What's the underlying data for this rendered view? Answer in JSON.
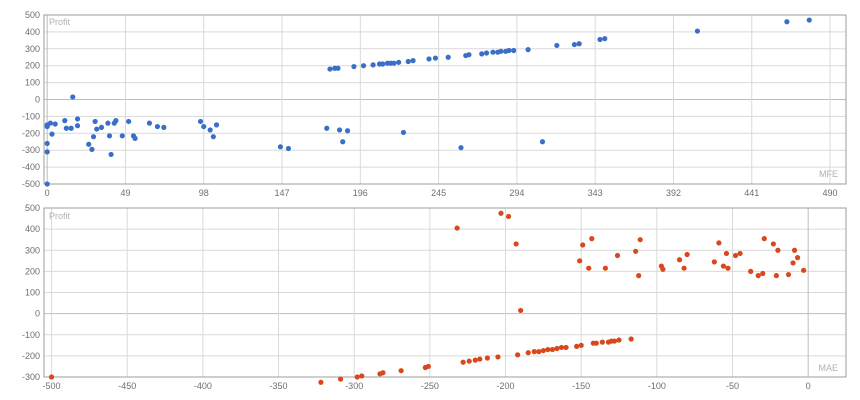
{
  "colors": {
    "top": "#3a6fc9",
    "bottom": "#d9471c",
    "grid": "#d9d9d9",
    "zero": "#bdbdbd",
    "axis": "#9e9e9e"
  },
  "chart_data": [
    {
      "type": "scatter",
      "corner_label": "Profit",
      "xlabel": "MFE",
      "xlim": [
        -2,
        500
      ],
      "ylim": [
        -500,
        500
      ],
      "x_ticks": [
        0,
        49,
        98,
        147,
        196,
        245,
        294,
        343,
        392,
        441,
        490
      ],
      "y_ticks": [
        500,
        400,
        300,
        200,
        100,
        0,
        -100,
        -200,
        -300,
        -400,
        -500
      ],
      "grid": true,
      "points": [
        [
          0,
          -500
        ],
        [
          0,
          -150
        ],
        [
          0,
          -160
        ],
        [
          0,
          -260
        ],
        [
          0,
          -310
        ],
        [
          2,
          -140
        ],
        [
          3,
          -205
        ],
        [
          5,
          -145
        ],
        [
          11,
          -125
        ],
        [
          12,
          -170
        ],
        [
          15,
          -170
        ],
        [
          16,
          15
        ],
        [
          19,
          -115
        ],
        [
          19,
          -155
        ],
        [
          26,
          -265
        ],
        [
          28,
          -295
        ],
        [
          29,
          -220
        ],
        [
          30,
          -130
        ],
        [
          31,
          -175
        ],
        [
          34,
          -165
        ],
        [
          38,
          -140
        ],
        [
          39,
          -215
        ],
        [
          40,
          -325
        ],
        [
          42,
          -140
        ],
        [
          43,
          -125
        ],
        [
          47,
          -215
        ],
        [
          51,
          -130
        ],
        [
          54,
          -215
        ],
        [
          55,
          -230
        ],
        [
          64,
          -140
        ],
        [
          69,
          -160
        ],
        [
          73,
          -165
        ],
        [
          96,
          -130
        ],
        [
          98,
          -160
        ],
        [
          102,
          -180
        ],
        [
          104,
          -220
        ],
        [
          106,
          -150
        ],
        [
          146,
          -280
        ],
        [
          151,
          -290
        ],
        [
          175,
          -170
        ],
        [
          177,
          180
        ],
        [
          180,
          185
        ],
        [
          182,
          185
        ],
        [
          183,
          -180
        ],
        [
          185,
          -250
        ],
        [
          188,
          -185
        ],
        [
          192,
          195
        ],
        [
          198,
          200
        ],
        [
          204,
          205
        ],
        [
          208,
          210
        ],
        [
          210,
          210
        ],
        [
          213,
          215
        ],
        [
          215,
          215
        ],
        [
          217,
          215
        ],
        [
          220,
          220
        ],
        [
          223,
          -195
        ],
        [
          226,
          225
        ],
        [
          229,
          230
        ],
        [
          239,
          240
        ],
        [
          243,
          245
        ],
        [
          251,
          250
        ],
        [
          259,
          -285
        ],
        [
          262,
          260
        ],
        [
          264,
          265
        ],
        [
          272,
          270
        ],
        [
          275,
          275
        ],
        [
          279,
          280
        ],
        [
          282,
          280
        ],
        [
          284,
          285
        ],
        [
          287,
          285
        ],
        [
          289,
          290
        ],
        [
          292,
          290
        ],
        [
          301,
          295
        ],
        [
          310,
          -250
        ],
        [
          319,
          320
        ],
        [
          330,
          325
        ],
        [
          333,
          330
        ],
        [
          346,
          355
        ],
        [
          349,
          360
        ],
        [
          407,
          405
        ],
        [
          463,
          460
        ],
        [
          477,
          470
        ]
      ]
    },
    {
      "type": "scatter",
      "corner_label": "Profit",
      "xlabel": "MAE",
      "xlim": [
        -505,
        25
      ],
      "ylim": [
        -300,
        500
      ],
      "x_ticks": [
        -500,
        -450,
        -400,
        -350,
        -300,
        -250,
        -200,
        -150,
        -100,
        -50,
        0
      ],
      "y_ticks": [
        500,
        400,
        300,
        200,
        100,
        0,
        -100,
        -200,
        -300
      ],
      "grid": true,
      "points": [
        [
          -500,
          -300
        ],
        [
          -322,
          -325
        ],
        [
          -309,
          -310
        ],
        [
          -298,
          -300
        ],
        [
          -295,
          -295
        ],
        [
          -283,
          -285
        ],
        [
          -281,
          -280
        ],
        [
          -269,
          -270
        ],
        [
          -253,
          -255
        ],
        [
          -251,
          -250
        ],
        [
          -232,
          405
        ],
        [
          -228,
          -230
        ],
        [
          -224,
          -225
        ],
        [
          -220,
          -220
        ],
        [
          -217,
          -215
        ],
        [
          -212,
          -210
        ],
        [
          -205,
          -205
        ],
        [
          -203,
          475
        ],
        [
          -198,
          460
        ],
        [
          -193,
          330
        ],
        [
          -192,
          -195
        ],
        [
          -190,
          15
        ],
        [
          -185,
          -185
        ],
        [
          -181,
          -180
        ],
        [
          -178,
          -180
        ],
        [
          -175,
          -175
        ],
        [
          -172,
          -170
        ],
        [
          -169,
          -170
        ],
        [
          -166,
          -165
        ],
        [
          -163,
          -160
        ],
        [
          -160,
          -160
        ],
        [
          -153,
          -155
        ],
        [
          -151,
          250
        ],
        [
          -150,
          -150
        ],
        [
          -149,
          325
        ],
        [
          -145,
          215
        ],
        [
          -143,
          355
        ],
        [
          -142,
          -140
        ],
        [
          -140,
          -140
        ],
        [
          -136,
          -135
        ],
        [
          -134,
          215
        ],
        [
          -132,
          -135
        ],
        [
          -130,
          -130
        ],
        [
          -128,
          -130
        ],
        [
          -126,
          275
        ],
        [
          -125,
          -125
        ],
        [
          -117,
          -120
        ],
        [
          -114,
          295
        ],
        [
          -112,
          180
        ],
        [
          -111,
          350
        ],
        [
          -97,
          225
        ],
        [
          -96,
          210
        ],
        [
          -85,
          255
        ],
        [
          -82,
          215
        ],
        [
          -80,
          280
        ],
        [
          -62,
          245
        ],
        [
          -59,
          335
        ],
        [
          -56,
          225
        ],
        [
          -54,
          285
        ],
        [
          -53,
          215
        ],
        [
          -48,
          275
        ],
        [
          -45,
          285
        ],
        [
          -38,
          200
        ],
        [
          -33,
          180
        ],
        [
          -30,
          190
        ],
        [
          -29,
          355
        ],
        [
          -23,
          330
        ],
        [
          -21,
          180
        ],
        [
          -20,
          300
        ],
        [
          -13,
          185
        ],
        [
          -10,
          240
        ],
        [
          -9,
          300
        ],
        [
          -7,
          265
        ],
        [
          -3,
          205
        ]
      ]
    }
  ]
}
